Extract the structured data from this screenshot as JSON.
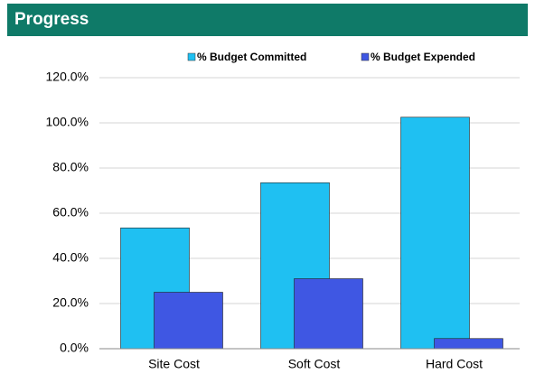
{
  "chart_data": {
    "type": "bar",
    "title": "Progress",
    "categories": [
      "Site Cost",
      "Soft Cost",
      "Hard Cost"
    ],
    "series": [
      {
        "name": "% Budget Committed",
        "color": "#1fc0f2",
        "values": [
          53.5,
          73.5,
          102.5
        ]
      },
      {
        "name": "% Budget Expended",
        "color": "#3f57e3",
        "values": [
          25,
          31,
          4.5
        ]
      }
    ],
    "ylim": [
      0,
      120
    ],
    "yticks": [
      {
        "value": 0,
        "label": "0.0%"
      },
      {
        "value": 20,
        "label": "20.0%"
      },
      {
        "value": 40,
        "label": "40.0%"
      },
      {
        "value": 60,
        "label": "60.0%"
      },
      {
        "value": 80,
        "label": "80.0%"
      },
      {
        "value": 100,
        "label": "100.0%"
      },
      {
        "value": 120,
        "label": "120.0%"
      }
    ],
    "grid": true,
    "legend": "top"
  }
}
